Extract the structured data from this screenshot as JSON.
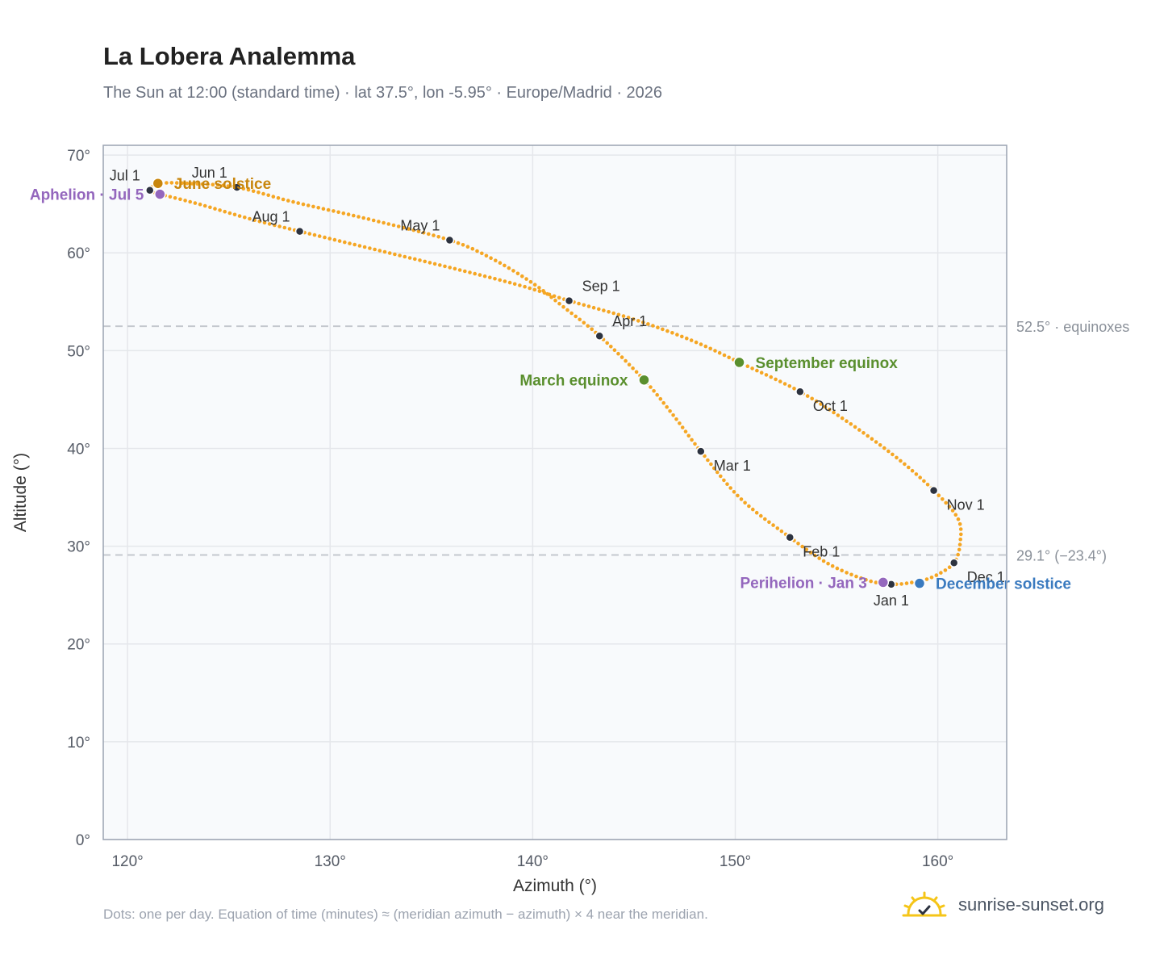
{
  "title": "La Lobera Analemma",
  "subtitle": "The Sun at 12:00 (standard time) · lat 37.5°, lon -5.95° · Europe/Madrid · 2026",
  "footer_note": "Dots: one per day. Equation of time (minutes) ≈ (meridian azimuth − azimuth) × 4 near the meridian.",
  "brand": "sunrise-sunset.org",
  "colors": {
    "curve": "#f5a623",
    "month_dot": "#2d3340",
    "equinox": "#5a8f2e",
    "june_solstice": "#c8860d",
    "december_solstice": "#3a7abf",
    "apsis": "#9467bd",
    "plot_bg": "#f8fafc",
    "grid": "#e5e7eb",
    "reference_line": "#c4c8ce"
  },
  "chart_data": {
    "type": "scatter",
    "xlabel": "Azimuth (°)",
    "ylabel": "Altitude (°)",
    "xlim": [
      118.8,
      163.4
    ],
    "ylim": [
      0,
      71
    ],
    "x_ticks": [
      120,
      130,
      140,
      150,
      160
    ],
    "y_ticks": [
      0,
      10,
      20,
      30,
      40,
      50,
      60,
      70
    ],
    "x_tick_labels": [
      "120°",
      "130°",
      "140°",
      "150°",
      "160°"
    ],
    "y_tick_labels": [
      "0°",
      "10°",
      "20°",
      "30°",
      "40°",
      "50°",
      "60°",
      "70°"
    ],
    "grid": true,
    "reference_lines": [
      {
        "y": 52.5,
        "label": "52.5° · equinoxes"
      },
      {
        "y": 29.1,
        "label": "29.1° (−23.4°)"
      }
    ],
    "analemma_path": [
      {
        "az": 157.7,
        "alt": 26.1
      },
      {
        "az": 156.4,
        "alt": 26.6
      },
      {
        "az": 154.6,
        "alt": 28.2
      },
      {
        "az": 152.7,
        "alt": 30.9
      },
      {
        "az": 150.3,
        "alt": 34.8
      },
      {
        "az": 148.3,
        "alt": 39.7
      },
      {
        "az": 146.9,
        "alt": 43.5
      },
      {
        "az": 145.5,
        "alt": 47.0
      },
      {
        "az": 143.3,
        "alt": 51.5
      },
      {
        "az": 141.5,
        "alt": 54.5
      },
      {
        "az": 140.0,
        "alt": 56.9
      },
      {
        "az": 138.0,
        "alt": 59.4
      },
      {
        "az": 135.9,
        "alt": 61.3
      },
      {
        "az": 132.0,
        "alt": 63.4
      },
      {
        "az": 128.2,
        "alt": 65.2
      },
      {
        "az": 125.4,
        "alt": 66.7
      },
      {
        "az": 123.0,
        "alt": 67.1
      },
      {
        "az": 121.6,
        "alt": 67.1
      },
      {
        "az": 121.1,
        "alt": 66.4
      },
      {
        "az": 121.6,
        "alt": 66.0
      },
      {
        "az": 123.5,
        "alt": 65.0
      },
      {
        "az": 126.0,
        "alt": 63.5
      },
      {
        "az": 128.5,
        "alt": 62.2
      },
      {
        "az": 132.5,
        "alt": 60.2
      },
      {
        "az": 136.5,
        "alt": 58.2
      },
      {
        "az": 139.5,
        "alt": 56.6
      },
      {
        "az": 141.8,
        "alt": 55.1
      },
      {
        "az": 145.0,
        "alt": 53.2
      },
      {
        "az": 147.9,
        "alt": 51.0
      },
      {
        "az": 150.2,
        "alt": 48.8
      },
      {
        "az": 153.2,
        "alt": 45.8
      },
      {
        "az": 155.7,
        "alt": 42.5
      },
      {
        "az": 158.0,
        "alt": 39.0
      },
      {
        "az": 159.8,
        "alt": 35.7
      },
      {
        "az": 161.0,
        "alt": 32.8
      },
      {
        "az": 161.1,
        "alt": 30.3
      },
      {
        "az": 160.8,
        "alt": 28.3
      },
      {
        "az": 159.9,
        "alt": 27.0
      },
      {
        "az": 159.0,
        "alt": 26.4
      },
      {
        "az": 157.7,
        "alt": 26.1
      }
    ],
    "month_markers": [
      {
        "label": "Jan 1",
        "az": 157.7,
        "alt": 26.1,
        "label_pos": "below"
      },
      {
        "label": "Feb 1",
        "az": 152.7,
        "alt": 30.9,
        "label_pos": "below-right"
      },
      {
        "label": "Mar 1",
        "az": 148.3,
        "alt": 39.7,
        "label_pos": "below-right"
      },
      {
        "label": "Apr 1",
        "az": 143.3,
        "alt": 51.5,
        "label_pos": "above-right"
      },
      {
        "label": "May 1",
        "az": 135.9,
        "alt": 61.3,
        "label_pos": "above-left"
      },
      {
        "label": "Jun 1",
        "az": 125.4,
        "alt": 66.7,
        "label_pos": "above-left"
      },
      {
        "label": "Jul 1",
        "az": 121.1,
        "alt": 66.4,
        "label_pos": "above-left"
      },
      {
        "label": "Aug 1",
        "az": 128.5,
        "alt": 62.2,
        "label_pos": "above-left"
      },
      {
        "label": "Sep 1",
        "az": 141.8,
        "alt": 55.1,
        "label_pos": "above-right"
      },
      {
        "label": "Oct 1",
        "az": 153.2,
        "alt": 45.8,
        "label_pos": "below-right"
      },
      {
        "label": "Nov 1",
        "az": 159.8,
        "alt": 35.7,
        "label_pos": "below-right"
      },
      {
        "label": "Dec 1",
        "az": 160.8,
        "alt": 28.3,
        "label_pos": "below-right"
      }
    ],
    "events": [
      {
        "label": "June solstice",
        "az": 121.5,
        "alt": 67.1,
        "color": "#c8860d",
        "label_pos": "right"
      },
      {
        "label": "Aphelion · Jul 5",
        "az": 121.6,
        "alt": 66.0,
        "color": "#9467bd",
        "label_pos": "left"
      },
      {
        "label": "March equinox",
        "az": 145.5,
        "alt": 47.0,
        "color": "#5a8f2e",
        "label_pos": "left"
      },
      {
        "label": "September equinox",
        "az": 150.2,
        "alt": 48.8,
        "color": "#5a8f2e",
        "label_pos": "right"
      },
      {
        "label": "Perihelion · Jan 3",
        "az": 157.3,
        "alt": 26.3,
        "color": "#9467bd",
        "label_pos": "left"
      },
      {
        "label": "December solstice",
        "az": 159.1,
        "alt": 26.2,
        "color": "#3a7abf",
        "label_pos": "right"
      }
    ]
  }
}
